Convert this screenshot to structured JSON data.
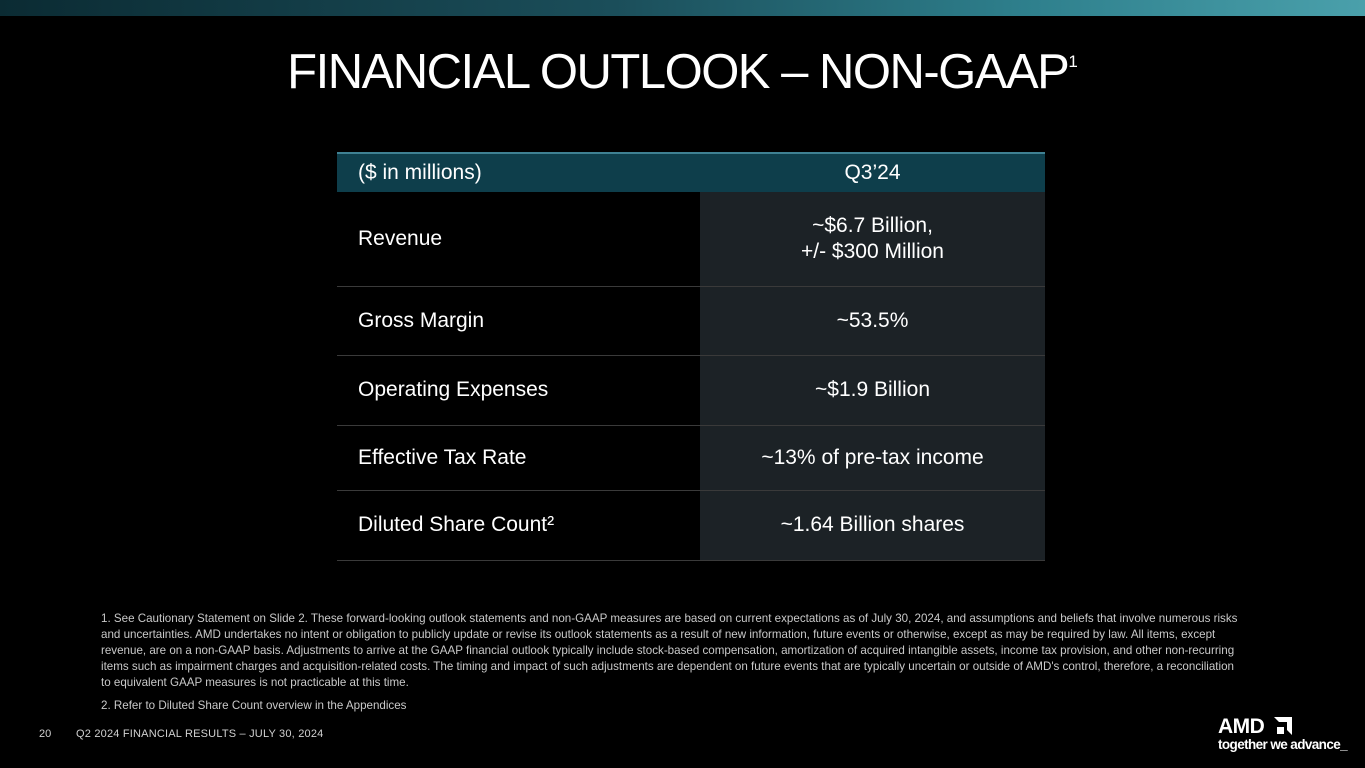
{
  "slide": {
    "title": "FINANCIAL OUTLOOK – NON-GAAP",
    "title_sup": "1",
    "page_number": "20",
    "footer": "Q2 2024 FINANCIAL RESULTS – JULY 30, 2024"
  },
  "table": {
    "header_label": "($ in millions)",
    "header_value": "Q3’24",
    "rows": [
      {
        "label": "Revenue",
        "value_line1": "~$6.7 Billion,",
        "value_line2": "+/- $300 Million"
      },
      {
        "label": "Gross Margin",
        "value": "~53.5%"
      },
      {
        "label": "Operating Expenses",
        "value": "~$1.9 Billion"
      },
      {
        "label": "Effective Tax Rate",
        "value": "~13% of pre-tax income"
      },
      {
        "label": "Diluted Share Count²",
        "value": "~1.64 Billion shares"
      }
    ]
  },
  "footnotes": {
    "note1": "1.  See Cautionary Statement on Slide 2. These forward-looking outlook statements and non-GAAP measures are based on current expectations as of July 30, 2024, and assumptions and beliefs that involve numerous risks and uncertainties. AMD undertakes no intent or obligation to publicly update or revise its outlook statements as a result of new information, future events or otherwise, except as may be required by law. All items, except revenue, are on a non-GAAP basis. Adjustments to arrive at the GAAP financial outlook typically include stock-based compensation, amortization of acquired intangible assets, income tax provision, and other non-recurring items such as impairment charges and acquisition-related costs. The timing and impact of such adjustments are dependent on future events that are typically uncertain or outside of AMD's control, therefore, a reconciliation to equivalent GAAP measures is not practicable at this time.",
    "note2": "2.  Refer to Diluted Share Count overview in the Appendices"
  },
  "logo": {
    "brand": "AMD",
    "tagline": "together we advance_",
    "icon": "amd-arrow-icon"
  },
  "colors": {
    "background": "#000000",
    "header_fill": "#0e3e4b",
    "value_cell_fill": "#1c2226",
    "accent": "#3f8193"
  }
}
